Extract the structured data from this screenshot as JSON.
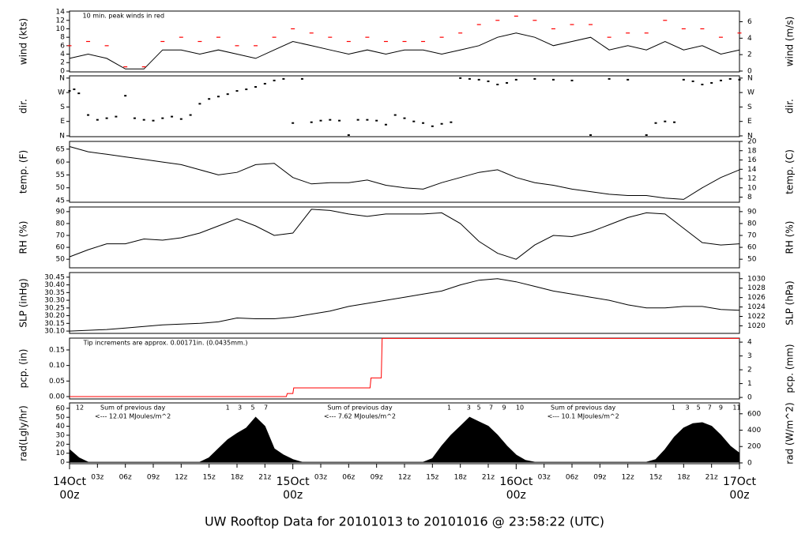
{
  "title": "UW Rooftop Data for 20101013  to  20101016 @ 23:58:22  (UTC)",
  "chart_data": [
    {
      "type": "line",
      "ylabel": "wind (kts)",
      "y2label": "wind (m/s)",
      "xlim": [
        0,
        72
      ],
      "ylim": [
        -0.2,
        14.2
      ],
      "yticks": [
        0,
        2,
        4,
        6,
        8,
        10,
        12,
        14
      ],
      "y2lim": [
        -0.1,
        7.3
      ],
      "y2ticks": [
        0,
        2,
        4,
        6
      ],
      "notes": [
        {
          "x": 1.4,
          "text": "10 min. peak winds in red"
        }
      ],
      "note_color": "#ff0000",
      "x": [
        0,
        2,
        4,
        6,
        8,
        10,
        12,
        14,
        16,
        18,
        20,
        22,
        24,
        26,
        28,
        30,
        32,
        34,
        36,
        38,
        40,
        42,
        44,
        46,
        48,
        50,
        52,
        54,
        56,
        58,
        60,
        62,
        64,
        66,
        68,
        70,
        72
      ],
      "series": [
        {
          "type": "line",
          "color": "#000000",
          "values": [
            3,
            4,
            3,
            0.5,
            0.5,
            5,
            5,
            4,
            5,
            4,
            3,
            5,
            7,
            6,
            5,
            4,
            5,
            4,
            5,
            5,
            4,
            5,
            6,
            8,
            9,
            8,
            6,
            7,
            8,
            5,
            6,
            5,
            7,
            5,
            6,
            4,
            5
          ]
        },
        {
          "type": "dash",
          "color": "#ff0000",
          "values": [
            6,
            7,
            6,
            1,
            1,
            7,
            8,
            7,
            8,
            6,
            6,
            8,
            10,
            9,
            8,
            7,
            8,
            7,
            7,
            7,
            8,
            9,
            11,
            12,
            13,
            12,
            10,
            11,
            11,
            8,
            9,
            9,
            12,
            10,
            10,
            8,
            9
          ]
        }
      ]
    },
    {
      "type": "scatter",
      "ylabel": "dir.",
      "y2label": "dir.",
      "xlim": [
        0,
        72
      ],
      "ylim": [
        -5,
        374
      ],
      "yticks": [
        {
          "value": 0,
          "label": "N"
        },
        {
          "value": 90,
          "label": "E"
        },
        {
          "value": 180,
          "label": "S"
        },
        {
          "value": 270,
          "label": "W"
        },
        {
          "value": 360,
          "label": "N"
        }
      ],
      "y2lim": [
        -5,
        374
      ],
      "y2ticks": [
        {
          "value": 0,
          "label": "N"
        },
        {
          "value": 90,
          "label": "E"
        },
        {
          "value": 180,
          "label": "S"
        },
        {
          "value": 270,
          "label": "W"
        },
        {
          "value": 360,
          "label": "N"
        }
      ],
      "series": [
        {
          "type": "scatter",
          "color": "#000000",
          "x": [
            0,
            0.5,
            1,
            2,
            3,
            4,
            5,
            6,
            7,
            8,
            9,
            10,
            11,
            12,
            13,
            14,
            15,
            16,
            17,
            18,
            19,
            20,
            21,
            22,
            23,
            24,
            25,
            26,
            27,
            28,
            29,
            30,
            31,
            32,
            33,
            34,
            35,
            36,
            37,
            38,
            39,
            40,
            41,
            42,
            43,
            44,
            45,
            46,
            47,
            48,
            50,
            52,
            54,
            56,
            58,
            60,
            62,
            63,
            64,
            65,
            66,
            67,
            68,
            69,
            70,
            71,
            72
          ],
          "values": [
            280,
            290,
            265,
            130,
            100,
            110,
            120,
            250,
            110,
            100,
            95,
            110,
            120,
            105,
            130,
            200,
            230,
            245,
            260,
            280,
            290,
            305,
            325,
            345,
            355,
            80,
            355,
            85,
            95,
            100,
            95,
            5,
            100,
            100,
            95,
            70,
            130,
            110,
            90,
            80,
            60,
            75,
            85,
            360,
            355,
            350,
            340,
            320,
            330,
            350,
            355,
            350,
            345,
            5,
            355,
            350,
            5,
            80,
            90,
            85,
            350,
            340,
            320,
            330,
            345,
            355,
            350
          ]
        }
      ]
    },
    {
      "type": "line",
      "ylabel": "temp. (F)",
      "y2label": "temp. (C)",
      "xlim": [
        0,
        72
      ],
      "ylim": [
        44.4,
        68
      ],
      "yticks": [
        45,
        50,
        55,
        60,
        65
      ],
      "y2lim": [
        6.9,
        20
      ],
      "y2ticks": [
        8,
        10,
        12,
        14,
        16,
        18,
        20
      ],
      "x": [
        0,
        2,
        4,
        6,
        8,
        10,
        12,
        14,
        16,
        18,
        20,
        22,
        24,
        26,
        28,
        30,
        32,
        34,
        36,
        38,
        40,
        42,
        44,
        46,
        48,
        50,
        52,
        54,
        56,
        58,
        60,
        62,
        64,
        66,
        68,
        70,
        72
      ],
      "series": [
        {
          "type": "line",
          "color": "#000000",
          "values": [
            66,
            64,
            63,
            62,
            61,
            60,
            59,
            57,
            55,
            56,
            59,
            59.5,
            54,
            51.5,
            52,
            52,
            53,
            51,
            50,
            49.5,
            52,
            54,
            56,
            57,
            54,
            52,
            51,
            49.5,
            48.5,
            47.5,
            47,
            47,
            46,
            45.5,
            50,
            54,
            57
          ]
        }
      ]
    },
    {
      "type": "line",
      "ylabel": "RH (%)",
      "y2label": "RH (%)",
      "xlim": [
        0,
        72
      ],
      "ylim": [
        42.8,
        93.9
      ],
      "yticks": [
        50,
        60,
        70,
        80,
        90
      ],
      "y2lim": [
        42.8,
        93.9
      ],
      "y2ticks": [
        50,
        60,
        70,
        80,
        90
      ],
      "x": [
        0,
        2,
        4,
        6,
        8,
        10,
        12,
        14,
        16,
        18,
        20,
        22,
        24,
        26,
        28,
        30,
        32,
        34,
        36,
        38,
        40,
        42,
        44,
        46,
        48,
        50,
        52,
        54,
        56,
        58,
        60,
        62,
        64,
        66,
        68,
        70,
        72
      ],
      "series": [
        {
          "type": "line",
          "color": "#000000",
          "values": [
            52,
            58,
            63,
            63,
            67,
            66,
            68,
            72,
            78,
            84,
            78,
            70,
            72,
            92,
            91,
            88,
            86,
            88,
            88,
            88,
            89,
            80,
            65,
            55,
            50,
            62,
            70,
            69,
            73,
            79,
            85,
            89,
            88,
            76,
            64,
            62,
            63
          ]
        }
      ]
    },
    {
      "type": "line",
      "ylabel": "SLP (inHg)",
      "y2label": "SLP (hPa)",
      "xlim": [
        0,
        72
      ],
      "ylim": [
        30.085,
        30.48
      ],
      "yticks": [
        {
          "value": 30.1,
          "label": "30.10"
        },
        30.15,
        {
          "value": 30.2,
          "label": "30.20"
        },
        30.25,
        {
          "value": 30.3,
          "label": "30.30"
        },
        30.35,
        {
          "value": 30.4,
          "label": "30.40"
        },
        30.45
      ],
      "y2lim": [
        1018.4,
        1031.3
      ],
      "y2ticks": [
        1020,
        1022,
        1024,
        1026,
        1028,
        1030
      ],
      "x": [
        0,
        2,
        4,
        6,
        8,
        10,
        12,
        14,
        16,
        18,
        20,
        22,
        24,
        26,
        28,
        30,
        32,
        34,
        36,
        38,
        40,
        42,
        44,
        46,
        48,
        50,
        52,
        54,
        56,
        58,
        60,
        62,
        64,
        66,
        68,
        70,
        72
      ],
      "series": [
        {
          "type": "line",
          "color": "#000000",
          "values": [
            30.1,
            30.105,
            30.11,
            30.12,
            30.13,
            30.14,
            30.145,
            30.15,
            30.16,
            30.185,
            30.18,
            30.18,
            30.19,
            30.21,
            30.23,
            30.26,
            30.28,
            30.3,
            30.32,
            30.34,
            30.36,
            30.4,
            30.43,
            30.44,
            30.42,
            30.39,
            30.36,
            30.34,
            30.32,
            30.3,
            30.27,
            30.25,
            30.25,
            30.26,
            30.26,
            30.24,
            30.235
          ]
        }
      ]
    },
    {
      "type": "line",
      "ylabel": "pcp. (in)",
      "y2label": "pcp. (mm)",
      "xlim": [
        0,
        72
      ],
      "ylim": [
        -0.0076,
        0.188
      ],
      "yticks": [
        {
          "value": 0,
          "label": "0.00"
        },
        {
          "value": 0.05,
          "label": "0.05"
        },
        {
          "value": 0.1,
          "label": "0.10"
        },
        {
          "value": 0.15,
          "label": "0.15"
        }
      ],
      "y2lim": [
        -0.11,
        4.29
      ],
      "y2ticks": [
        0,
        1,
        2,
        3,
        4
      ],
      "notes": [
        {
          "x": 1.5,
          "text": "Tip increments are approx. 0.00171in. (0.0435mm.)"
        }
      ],
      "note_color": "#ff0000",
      "series": [
        {
          "type": "line",
          "color": "#ff0000",
          "x": [
            0,
            23.3,
            23.4,
            24,
            24.1,
            32.3,
            32.4,
            33.5,
            33.6,
            72
          ],
          "values": [
            0,
            0,
            0.01,
            0.01,
            0.028,
            0.028,
            0.06,
            0.06,
            0.187,
            0.187
          ]
        }
      ]
    },
    {
      "type": "area",
      "ylabel": "rad(Lgly/hr)",
      "y2label": "rad (W/m^2)",
      "xlim": [
        0,
        72
      ],
      "ylim": [
        -1.7,
        66
      ],
      "yticks": [
        0,
        10,
        20,
        30,
        40,
        50,
        60
      ],
      "y2lim": [
        -10,
        733
      ],
      "y2ticks": [
        0,
        200,
        400,
        600
      ],
      "annotation_color": "#9900cc",
      "hour_marks": [
        {
          "x": 1.1,
          "text": "12"
        },
        {
          "x": 17,
          "text": "1"
        },
        {
          "x": 18.3,
          "text": "3"
        },
        {
          "x": 19.7,
          "text": "5"
        },
        {
          "x": 21.1,
          "text": "7"
        },
        {
          "x": 40.8,
          "text": "1"
        },
        {
          "x": 42.9,
          "text": "3"
        },
        {
          "x": 44,
          "text": "5"
        },
        {
          "x": 45.3,
          "text": "7"
        },
        {
          "x": 46.7,
          "text": "9"
        },
        {
          "x": 48.4,
          "text": "10"
        },
        {
          "x": 64.9,
          "text": "1"
        },
        {
          "x": 66.4,
          "text": "3"
        },
        {
          "x": 67.6,
          "text": "5"
        },
        {
          "x": 68.8,
          "text": "7"
        },
        {
          "x": 70,
          "text": "9"
        },
        {
          "x": 71.7,
          "text": "11"
        }
      ],
      "sums": [
        {
          "x": 6.8,
          "lines": [
            "Sum of previous day",
            "<--- 12.01 MJoules/m^2"
          ]
        },
        {
          "x": 31.2,
          "lines": [
            "Sum of previous day",
            "<--- 7.62 MJoules/m^2"
          ]
        },
        {
          "x": 55.2,
          "lines": [
            "Sum of previous day",
            "<--- 10.1 MJoules/m^2"
          ]
        }
      ],
      "x": [
        0,
        1,
        2,
        3,
        4,
        5,
        6,
        7,
        8,
        9,
        10,
        11,
        12,
        13,
        14,
        15,
        16,
        17,
        18,
        19,
        20,
        21,
        22,
        23,
        24,
        25,
        26,
        27,
        28,
        29,
        30,
        31,
        32,
        33,
        34,
        35,
        36,
        37,
        38,
        39,
        40,
        41,
        42,
        43,
        44,
        45,
        46,
        47,
        48,
        49,
        50,
        51,
        52,
        53,
        54,
        55,
        56,
        57,
        58,
        59,
        60,
        61,
        62,
        63,
        64,
        65,
        66,
        67,
        68,
        69,
        70,
        71,
        72
      ],
      "xticks": [
        {
          "value": 3,
          "label": "03z"
        },
        {
          "value": 6,
          "label": "06z"
        },
        {
          "value": 9,
          "label": "09z"
        },
        {
          "value": 12,
          "label": "12z"
        },
        {
          "value": 15,
          "label": "15z"
        },
        {
          "value": 18,
          "label": "18z"
        },
        {
          "value": 21,
          "label": "21z"
        },
        {
          "value": 27,
          "label": "03z"
        },
        {
          "value": 30,
          "label": "06z"
        },
        {
          "value": 33,
          "label": "09z"
        },
        {
          "value": 36,
          "label": "12z"
        },
        {
          "value": 39,
          "label": "15z"
        },
        {
          "value": 42,
          "label": "18z"
        },
        {
          "value": 45,
          "label": "21z"
        },
        {
          "value": 51,
          "label": "03z"
        },
        {
          "value": 54,
          "label": "06z"
        },
        {
          "value": 57,
          "label": "09z"
        },
        {
          "value": 60,
          "label": "12z"
        },
        {
          "value": 63,
          "label": "15z"
        },
        {
          "value": 66,
          "label": "18z"
        },
        {
          "value": 69,
          "label": "21z"
        }
      ],
      "day_ticks": [
        {
          "value": 0,
          "date": "14Oct",
          "label": "00z"
        },
        {
          "value": 24,
          "date": "15Oct",
          "label": "00z"
        },
        {
          "value": 48,
          "date": "16Oct",
          "label": "00z"
        },
        {
          "value": 72,
          "date": "17Oct",
          "label": "00z"
        }
      ],
      "day_color": "#ff0000",
      "series": [
        {
          "type": "area",
          "color": "#000000",
          "values": [
            14,
            5,
            0,
            0,
            0,
            0,
            0,
            0,
            0,
            0,
            0,
            0,
            0,
            0,
            0,
            5,
            15,
            25,
            32,
            38,
            50,
            40,
            15,
            8,
            3,
            0,
            0,
            0,
            0,
            0,
            0,
            0,
            0,
            0,
            0,
            0,
            0,
            0,
            0,
            4,
            18,
            30,
            40,
            50,
            45,
            40,
            30,
            18,
            8,
            2,
            0,
            0,
            0,
            0,
            0,
            0,
            0,
            0,
            0,
            0,
            0,
            0,
            0,
            3,
            14,
            28,
            38,
            43,
            44,
            40,
            30,
            18,
            10
          ]
        }
      ]
    }
  ]
}
